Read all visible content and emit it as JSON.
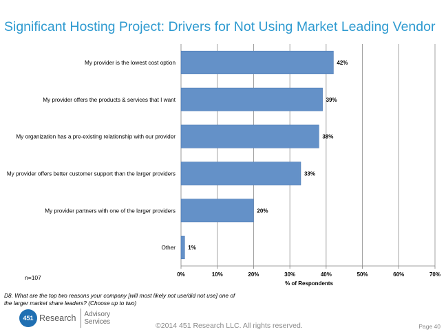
{
  "page_title": "Significant Hosting Project: Drivers for Not Using Market Leading Vendor",
  "chart_data": {
    "type": "bar",
    "orientation": "horizontal",
    "categories": [
      "My provider is the lowest cost option",
      "My provider offers the products & services that I want",
      "My organization has a pre-existing relationship with our provider",
      "My provider offers better customer support than the larger providers",
      "My provider partners with one of the larger providers",
      "Other"
    ],
    "values": [
      42,
      39,
      38,
      33,
      20,
      1
    ],
    "value_labels": [
      "42%",
      "39%",
      "38%",
      "33%",
      "20%",
      "1%"
    ],
    "x_ticks": [
      "0%",
      "10%",
      "20%",
      "30%",
      "40%",
      "50%",
      "60%",
      "70%"
    ],
    "xlim": [
      0,
      70
    ],
    "xlabel": "% of Respondents",
    "grid": true,
    "bar_color": "#6491c8",
    "bar_edge_color": "#4a78b4"
  },
  "sample_size": "n=107",
  "question": "D8. What are the top two reasons your company [will most likely not use/did not use] one of the larger market share leaders? (Choose up to two)",
  "logo": {
    "badge": "451",
    "word": "Research",
    "line1": "Advisory",
    "line2": "Services"
  },
  "copyright": "©2014 451 Research LLC. All rights reserved.",
  "page_number": "Page 40"
}
